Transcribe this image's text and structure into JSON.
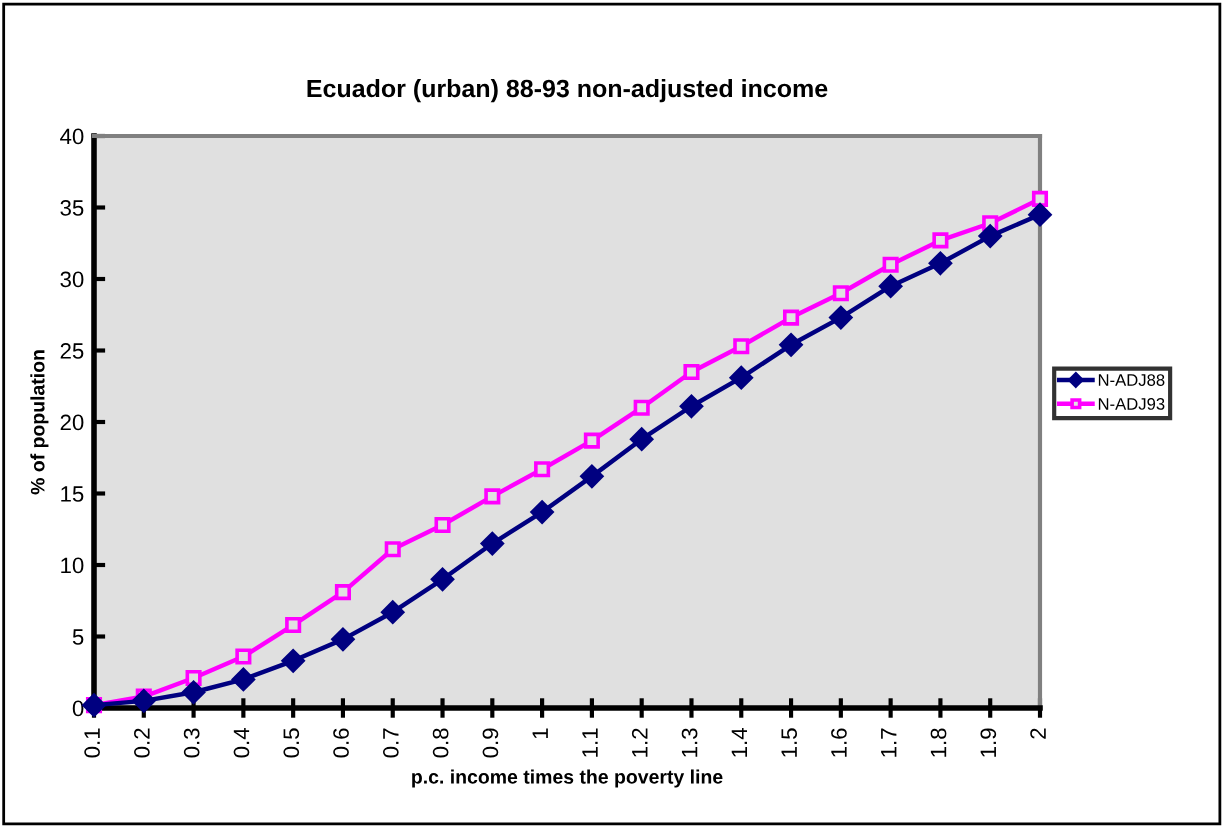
{
  "chart_data": {
    "type": "line",
    "title": "Ecuador (urban) 88-93 non-adjusted income",
    "xlabel": "p.c. income times the poverty line",
    "ylabel": "% of population",
    "categories": [
      "0.1",
      "0.2",
      "0.3",
      "0.4",
      "0.5",
      "0.6",
      "0.7",
      "0.8",
      "0.9",
      "1",
      "1.1",
      "1.2",
      "1.3",
      "1.4",
      "1.5",
      "1.6",
      "1.7",
      "1.8",
      "1.9",
      "2"
    ],
    "series": [
      {
        "name": "N-ADJ88",
        "color": "#000080",
        "marker": "diamond",
        "values": [
          0.2,
          0.5,
          1.1,
          2.0,
          3.3,
          4.8,
          6.7,
          9.0,
          11.5,
          13.7,
          16.2,
          18.8,
          21.1,
          23.1,
          25.4,
          27.3,
          29.5,
          31.1,
          33.0,
          34.5
        ]
      },
      {
        "name": "N-ADJ93",
        "color": "#ff00ff",
        "marker": "square",
        "values": [
          0.2,
          0.8,
          2.1,
          3.6,
          5.8,
          8.1,
          11.1,
          12.8,
          14.8,
          16.7,
          18.7,
          21.0,
          23.5,
          25.3,
          27.3,
          29.0,
          31.0,
          32.7,
          33.9,
          35.6
        ]
      }
    ],
    "ylim": [
      0,
      40
    ],
    "yticks": [
      0,
      5,
      10,
      15,
      20,
      25,
      30,
      35,
      40
    ],
    "grid": false,
    "legend": "right",
    "line_style": "solid"
  }
}
